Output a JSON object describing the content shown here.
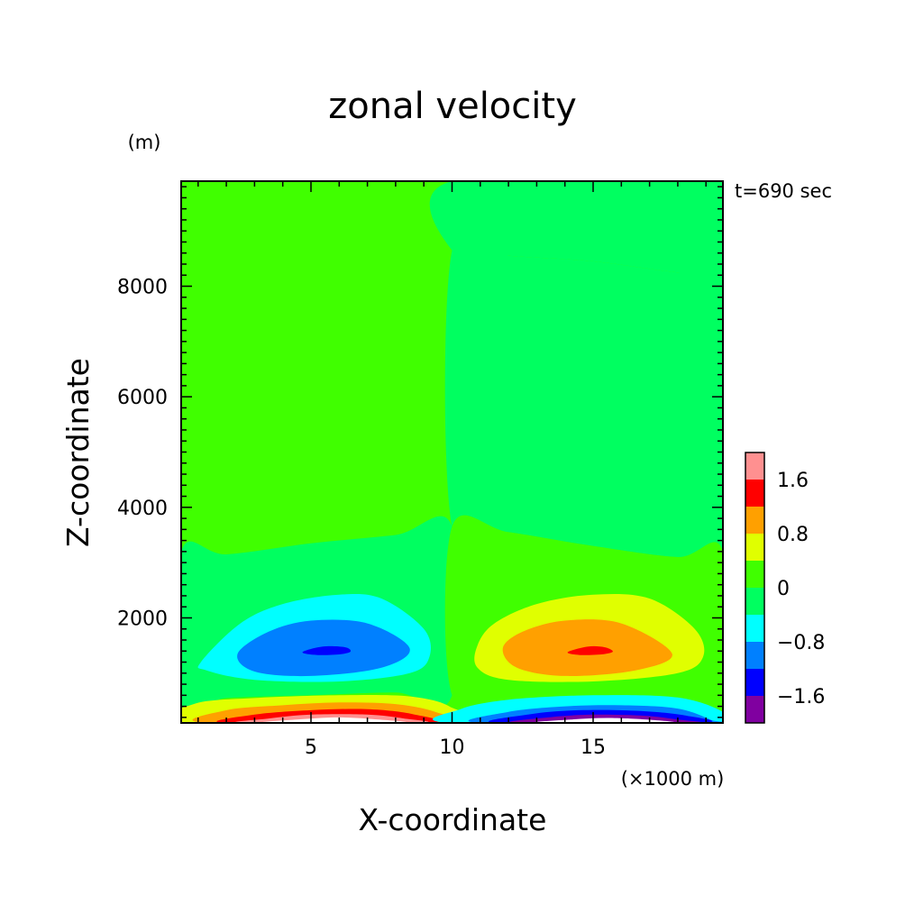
{
  "chart_data": {
    "type": "contour",
    "title": "zonal velocity",
    "time_label": "t=690 sec",
    "xlabel": "X-coordinate",
    "ylabel": "Z-coordinate",
    "x_unit": "(×1000 m)",
    "y_unit": "(m)",
    "xlim": [
      0.4,
      19.6
    ],
    "ylim": [
      100,
      9900
    ],
    "x_major_ticks": [
      5,
      10,
      15
    ],
    "x_tick_labels": [
      "5",
      "10",
      "15"
    ],
    "y_major_ticks": [
      2000,
      4000,
      6000,
      8000
    ],
    "y_tick_labels": [
      "2000",
      "4000",
      "6000",
      "8000"
    ],
    "background_color": "#40ff00",
    "colorbar": {
      "colors": [
        "#8000a0",
        "#0000ff",
        "#0080ff",
        "#00ffff",
        "#00ff60",
        "#40ff00",
        "#e0ff00",
        "#ffa000",
        "#ff0000",
        "#ff9090"
      ],
      "bounds": [
        -2.0,
        -1.6,
        -1.2,
        -0.8,
        -0.4,
        0.0,
        0.4,
        0.8,
        1.2,
        1.6,
        2.0
      ],
      "tick_labels": [
        {
          "value": -1.6,
          "label": "−1.6"
        },
        {
          "value": -0.8,
          "label": "−0.8"
        },
        {
          "value": 0.0,
          "label": "0"
        },
        {
          "value": 0.8,
          "label": "0.8"
        },
        {
          "value": 1.6,
          "label": "1.6"
        }
      ]
    },
    "regions": [
      {
        "name": "upper-left-band",
        "color": "#40ff00",
        "points": [
          [
            0.4,
            8250
          ],
          [
            2,
            8220
          ],
          [
            5,
            8350
          ],
          [
            8,
            8500
          ],
          [
            10,
            8650
          ],
          [
            10,
            9900
          ],
          [
            0.4,
            9900
          ]
        ]
      },
      {
        "name": "upper-right-band",
        "color": "#00ff60",
        "points": [
          [
            10,
            9900
          ],
          [
            10,
            8650
          ],
          [
            12,
            8550
          ],
          [
            15,
            8450
          ],
          [
            18,
            8250
          ],
          [
            19.6,
            8250
          ],
          [
            19.6,
            9900
          ]
        ]
      },
      {
        "name": "right-middle-band",
        "color": "#00ff60",
        "points": [
          [
            10,
            8650
          ],
          [
            12,
            8550
          ],
          [
            15,
            8450
          ],
          [
            18,
            8250
          ],
          [
            19.6,
            8250
          ],
          [
            19.6,
            3200
          ],
          [
            18,
            3100
          ],
          [
            15,
            3300
          ],
          [
            12,
            3550
          ],
          [
            10,
            3650
          ]
        ]
      },
      {
        "name": "lower-left-band",
        "color": "#00ff60",
        "points": [
          [
            0.4,
            3200
          ],
          [
            2,
            3150
          ],
          [
            5,
            3350
          ],
          [
            8,
            3500
          ],
          [
            10,
            3650
          ],
          [
            10,
            600
          ],
          [
            8,
            650
          ],
          [
            5,
            600
          ],
          [
            2,
            550
          ],
          [
            0.4,
            450
          ]
        ]
      },
      {
        "name": "lower-right-band",
        "color": "#40ff00",
        "points": [
          [
            10,
            3650
          ],
          [
            12,
            3550
          ],
          [
            15,
            3300
          ],
          [
            18,
            3100
          ],
          [
            19.6,
            3200
          ],
          [
            19.6,
            450
          ],
          [
            18,
            550
          ],
          [
            15,
            600
          ],
          [
            12,
            650
          ],
          [
            10,
            600
          ]
        ]
      },
      {
        "name": "left-eddy-outer",
        "color": "#00ffff",
        "points": [
          [
            1.1,
            1200
          ],
          [
            2.5,
            1900
          ],
          [
            4,
            2250
          ],
          [
            6,
            2420
          ],
          [
            7.5,
            2350
          ],
          [
            9,
            1800
          ],
          [
            9.2,
            1300
          ],
          [
            8.5,
            1000
          ],
          [
            6,
            850
          ],
          [
            3,
            880
          ],
          [
            1.3,
            1050
          ]
        ]
      },
      {
        "name": "left-eddy-middle",
        "color": "#0080ff",
        "points": [
          [
            2.4,
            1350
          ],
          [
            3.5,
            1750
          ],
          [
            5,
            1950
          ],
          [
            7,
            1900
          ],
          [
            8.5,
            1450
          ],
          [
            7.5,
            1100
          ],
          [
            5,
            950
          ],
          [
            3,
            1030
          ]
        ]
      },
      {
        "name": "left-eddy-core",
        "color": "#0000ff",
        "points": [
          [
            4.7,
            1380
          ],
          [
            5.4,
            1480
          ],
          [
            6.2,
            1470
          ],
          [
            6.4,
            1390
          ],
          [
            6,
            1340
          ],
          [
            5.2,
            1330
          ]
        ]
      },
      {
        "name": "right-eddy-outer",
        "color": "#e0ff00",
        "points": [
          [
            10.9,
            1500
          ],
          [
            11.5,
            1900
          ],
          [
            13,
            2250
          ],
          [
            15,
            2420
          ],
          [
            17,
            2350
          ],
          [
            18.6,
            1800
          ],
          [
            18.9,
            1300
          ],
          [
            18,
            1000
          ],
          [
            15,
            850
          ],
          [
            12,
            880
          ],
          [
            10.9,
            1100
          ]
        ]
      },
      {
        "name": "right-eddy-middle",
        "color": "#ffa000",
        "points": [
          [
            11.8,
            1450
          ],
          [
            12.5,
            1750
          ],
          [
            14,
            1950
          ],
          [
            16,
            1900
          ],
          [
            17.8,
            1350
          ],
          [
            16.5,
            1050
          ],
          [
            14,
            950
          ],
          [
            12.3,
            1100
          ]
        ]
      },
      {
        "name": "right-eddy-core",
        "color": "#ff0000",
        "points": [
          [
            14.1,
            1380
          ],
          [
            14.8,
            1480
          ],
          [
            15.4,
            1470
          ],
          [
            15.7,
            1390
          ],
          [
            15.3,
            1340
          ],
          [
            14.5,
            1330
          ]
        ]
      },
      {
        "name": "left-bottom-l1",
        "color": "#e0ff00",
        "points": [
          [
            0.4,
            100
          ],
          [
            0.9,
            450
          ],
          [
            3,
            550
          ],
          [
            6,
            600
          ],
          [
            8.5,
            580
          ],
          [
            9.9,
            400
          ],
          [
            10,
            100
          ]
        ]
      },
      {
        "name": "left-bottom-l2",
        "color": "#ffa000",
        "points": [
          [
            1.3,
            100
          ],
          [
            2,
            330
          ],
          [
            4,
            420
          ],
          [
            6,
            470
          ],
          [
            8,
            440
          ],
          [
            9.4,
            300
          ],
          [
            9.7,
            100
          ]
        ]
      },
      {
        "name": "left-bottom-l3",
        "color": "#ff0000",
        "points": [
          [
            2,
            100
          ],
          [
            3,
            250
          ],
          [
            5,
            330
          ],
          [
            7,
            350
          ],
          [
            8.6,
            260
          ],
          [
            9.1,
            100
          ]
        ]
      },
      {
        "name": "left-bottom-l4",
        "color": "#ff9090",
        "points": [
          [
            2.6,
            100
          ],
          [
            3.5,
            180
          ],
          [
            5,
            250
          ],
          [
            7,
            250
          ],
          [
            8.3,
            180
          ],
          [
            8.8,
            100
          ]
        ]
      },
      {
        "name": "left-bottom-l5",
        "color": "#ffffff",
        "points": [
          [
            3.4,
            100
          ],
          [
            4.5,
            160
          ],
          [
            6,
            200
          ],
          [
            7.4,
            160
          ],
          [
            8.2,
            100
          ]
        ]
      },
      {
        "name": "right-bottom-l1",
        "color": "#00ffff",
        "points": [
          [
            10,
            100
          ],
          [
            10.3,
            350
          ],
          [
            12,
            520
          ],
          [
            15,
            600
          ],
          [
            18,
            560
          ],
          [
            19.6,
            300
          ],
          [
            19.6,
            100
          ]
        ]
      },
      {
        "name": "right-bottom-l2",
        "color": "#0080ff",
        "points": [
          [
            11,
            100
          ],
          [
            12,
            300
          ],
          [
            14,
            400
          ],
          [
            16,
            420
          ],
          [
            18,
            360
          ],
          [
            19.2,
            150
          ],
          [
            19.2,
            100
          ]
        ]
      },
      {
        "name": "right-bottom-l3",
        "color": "#0000ff",
        "points": [
          [
            11.6,
            100
          ],
          [
            12.8,
            260
          ],
          [
            14.5,
            330
          ],
          [
            16.5,
            320
          ],
          [
            18.2,
            240
          ],
          [
            18.8,
            100
          ]
        ]
      },
      {
        "name": "right-bottom-l4",
        "color": "#8000a0",
        "points": [
          [
            12.3,
            100
          ],
          [
            13.4,
            200
          ],
          [
            15,
            250
          ],
          [
            16.8,
            230
          ],
          [
            18,
            160
          ],
          [
            18.5,
            100
          ]
        ]
      },
      {
        "name": "right-bottom-l5",
        "color": "#ffffff",
        "points": [
          [
            13,
            100
          ],
          [
            14.2,
            160
          ],
          [
            15.5,
            190
          ],
          [
            16.9,
            160
          ],
          [
            17.7,
            100
          ]
        ]
      }
    ]
  }
}
